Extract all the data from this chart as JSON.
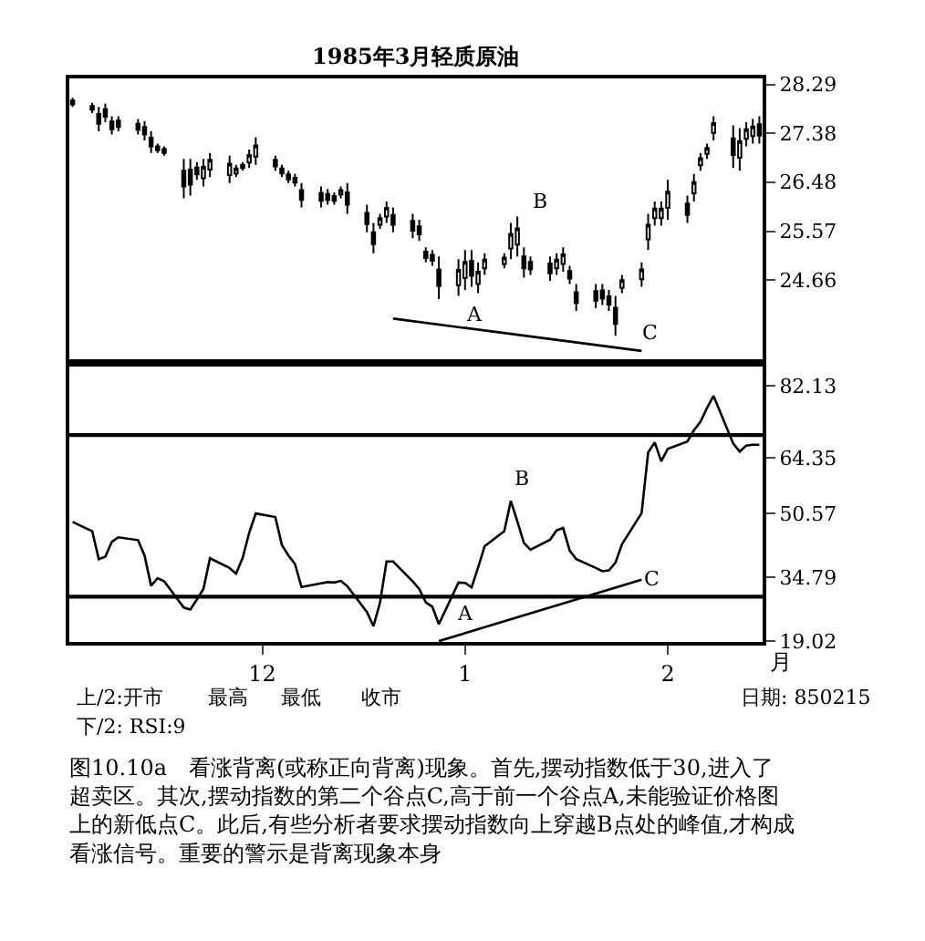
{
  "chart_data": [
    {
      "type": "candlestick",
      "title": "1985年3月轻质原油",
      "color": "#000000",
      "x": [
        "1984-11-02",
        "1984-11-05",
        "1984-11-06",
        "1984-11-07",
        "1984-11-08",
        "1984-11-09",
        "1984-11-12",
        "1984-11-13",
        "1984-11-14",
        "1984-11-15",
        "1984-11-16",
        "1984-11-19",
        "1984-11-20",
        "1984-11-21",
        "1984-11-22",
        "1984-11-23",
        "1984-11-26",
        "1984-11-27",
        "1984-11-28",
        "1984-11-29",
        "1984-11-30",
        "1984-12-03",
        "1984-12-04",
        "1984-12-05",
        "1984-12-06",
        "1984-12-07",
        "1984-12-10",
        "1984-12-11",
        "1984-12-12",
        "1984-12-13",
        "1984-12-14",
        "1984-12-17",
        "1984-12-18",
        "1984-12-19",
        "1984-12-20",
        "1984-12-21",
        "1984-12-24",
        "1984-12-25",
        "1984-12-26",
        "1984-12-27",
        "1984-12-28",
        "1984-12-31",
        "1985-01-01",
        "1985-01-02",
        "1985-01-03",
        "1985-01-04",
        "1985-01-07",
        "1985-01-08",
        "1985-01-09",
        "1985-01-10",
        "1985-01-11",
        "1985-01-14",
        "1985-01-15",
        "1985-01-16",
        "1985-01-17",
        "1985-01-18",
        "1985-01-21",
        "1985-01-22",
        "1985-01-23",
        "1985-01-24",
        "1985-01-25",
        "1985-01-28",
        "1985-01-29",
        "1985-01-30",
        "1985-01-31",
        "1985-02-01",
        "1985-02-04",
        "1985-02-05",
        "1985-02-06",
        "1985-02-07",
        "1985-02-08",
        "1985-02-11",
        "1985-02-12",
        "1985-02-13",
        "1985-02-14",
        "1985-02-15"
      ],
      "ohlc": [
        [
          27.99,
          28.04,
          27.87,
          27.92
        ],
        [
          27.89,
          27.95,
          27.76,
          27.82
        ],
        [
          27.74,
          27.87,
          27.42,
          27.56
        ],
        [
          27.83,
          27.93,
          27.59,
          27.69
        ],
        [
          27.6,
          27.7,
          27.36,
          27.46
        ],
        [
          27.62,
          27.7,
          27.42,
          27.5
        ],
        [
          27.56,
          27.65,
          27.36,
          27.45
        ],
        [
          27.5,
          27.61,
          27.25,
          27.36
        ],
        [
          27.3,
          27.42,
          27.02,
          27.14
        ],
        [
          27.14,
          27.19,
          27.02,
          27.07
        ],
        [
          27.09,
          27.14,
          26.97,
          27.02
        ],
        [
          26.69,
          26.91,
          26.18,
          26.4
        ],
        [
          26.71,
          26.91,
          26.23,
          26.43
        ],
        [
          26.75,
          26.85,
          26.52,
          26.62
        ],
        [
          26.55,
          26.91,
          26.4,
          26.76
        ],
        [
          26.71,
          27.02,
          26.57,
          26.89
        ],
        [
          26.61,
          26.97,
          26.46,
          26.82
        ],
        [
          26.64,
          26.8,
          26.57,
          26.73
        ],
        [
          26.74,
          26.85,
          26.69,
          26.8
        ],
        [
          26.84,
          27.08,
          26.74,
          26.98
        ],
        [
          26.95,
          27.31,
          26.8,
          27.16
        ],
        [
          26.89,
          26.97,
          26.69,
          26.77
        ],
        [
          26.73,
          26.8,
          26.57,
          26.64
        ],
        [
          26.62,
          26.69,
          26.46,
          26.53
        ],
        [
          26.56,
          26.63,
          26.4,
          26.47
        ],
        [
          26.33,
          26.46,
          26.01,
          26.15
        ],
        [
          26.28,
          26.4,
          26.01,
          26.13
        ],
        [
          26.26,
          26.35,
          26.06,
          26.15
        ],
        [
          26.22,
          26.29,
          26.06,
          26.13
        ],
        [
          26.25,
          26.4,
          26.18,
          26.33
        ],
        [
          26.29,
          26.46,
          25.89,
          26.06
        ],
        [
          25.91,
          26.06,
          25.55,
          25.7
        ],
        [
          25.55,
          25.72,
          25.16,
          25.33
        ],
        [
          25.69,
          25.89,
          25.61,
          25.81
        ],
        [
          25.84,
          26.12,
          25.72,
          26.0
        ],
        [
          25.87,
          26.01,
          25.55,
          25.69
        ],
        [
          25.76,
          25.89,
          25.44,
          25.58
        ],
        [
          25.66,
          25.78,
          25.39,
          25.51
        ],
        [
          25.19,
          25.27,
          24.99,
          25.07
        ],
        [
          25.13,
          25.22,
          24.93,
          25.02
        ],
        [
          24.86,
          25.1,
          24.31,
          24.55
        ],
        [
          24.57,
          25.05,
          24.37,
          24.85
        ],
        [
          24.7,
          25.22,
          24.48,
          25.0
        ],
        [
          25.02,
          25.22,
          24.54,
          24.74
        ],
        [
          24.59,
          24.99,
          24.42,
          24.82
        ],
        [
          24.88,
          25.16,
          24.76,
          25.04
        ],
        [
          24.96,
          25.16,
          24.88,
          25.08
        ],
        [
          25.25,
          25.72,
          25.05,
          25.52
        ],
        [
          25.32,
          25.84,
          25.1,
          25.62
        ],
        [
          25.1,
          25.27,
          24.71,
          24.88
        ],
        [
          25.0,
          25.1,
          24.76,
          24.86
        ],
        [
          24.97,
          25.1,
          24.65,
          24.79
        ],
        [
          24.88,
          25.16,
          24.76,
          25.04
        ],
        [
          24.96,
          25.27,
          24.82,
          25.14
        ],
        [
          24.83,
          24.93,
          24.59,
          24.69
        ],
        [
          24.44,
          24.59,
          24.09,
          24.24
        ],
        [
          24.46,
          24.59,
          24.14,
          24.28
        ],
        [
          24.47,
          24.59,
          24.2,
          24.32
        ],
        [
          24.36,
          24.48,
          24.09,
          24.21
        ],
        [
          24.15,
          24.37,
          23.63,
          23.85
        ],
        [
          24.52,
          24.76,
          24.42,
          24.66
        ],
        [
          24.68,
          24.99,
          24.54,
          24.86
        ],
        [
          25.42,
          25.89,
          25.22,
          25.69
        ],
        [
          25.81,
          26.12,
          25.67,
          25.99
        ],
        [
          25.81,
          26.12,
          25.67,
          25.99
        ],
        [
          26.0,
          26.52,
          25.78,
          26.3
        ],
        [
          26.08,
          26.23,
          25.72,
          25.87
        ],
        [
          26.27,
          26.63,
          26.12,
          26.48
        ],
        [
          26.79,
          27.02,
          26.69,
          26.92
        ],
        [
          27.0,
          27.19,
          26.91,
          27.11
        ],
        [
          27.39,
          27.7,
          27.25,
          27.57
        ],
        [
          27.29,
          27.53,
          26.74,
          26.98
        ],
        [
          26.93,
          27.48,
          26.69,
          27.24
        ],
        [
          27.28,
          27.59,
          27.14,
          27.46
        ],
        [
          27.33,
          27.65,
          27.19,
          27.51
        ],
        [
          27.55,
          27.7,
          27.19,
          27.34
        ]
      ],
      "series": [
        {
          "type": "line",
          "color": "#000000",
          "x": [
            "1984-12-21",
            "1985-01-28"
          ],
          "values": [
            23.95,
            23.35
          ]
        }
      ],
      "xlim": [
        "1984-11-01T12:00",
        "1985-02-15T12:00"
      ],
      "ylim": [
        23.2,
        28.4
      ],
      "yticks": [
        28.29,
        27.38,
        26.48,
        25.57,
        24.66
      ],
      "tick_labels": "y",
      "annotations": [
        "A",
        "B",
        "C"
      ]
    },
    {
      "type": "line",
      "xlabel": "月",
      "x": [
        "1984-11-02",
        "1984-11-05",
        "1984-11-06",
        "1984-11-07",
        "1984-11-08",
        "1984-11-09",
        "1984-11-12",
        "1984-11-13",
        "1984-11-14",
        "1984-11-15",
        "1984-11-16",
        "1984-11-19",
        "1984-11-20",
        "1984-11-21",
        "1984-11-22",
        "1984-11-23",
        "1984-11-26",
        "1984-11-27",
        "1984-11-28",
        "1984-11-29",
        "1984-11-30",
        "1984-12-03",
        "1984-12-04",
        "1984-12-05",
        "1984-12-06",
        "1984-12-07",
        "1984-12-10",
        "1984-12-11",
        "1984-12-12",
        "1984-12-13",
        "1984-12-14",
        "1984-12-17",
        "1984-12-18",
        "1984-12-19",
        "1984-12-20",
        "1984-12-21",
        "1984-12-24",
        "1984-12-25",
        "1984-12-26",
        "1984-12-27",
        "1984-12-28",
        "1984-12-31",
        "1985-01-01",
        "1985-01-02",
        "1985-01-03",
        "1985-01-04",
        "1985-01-07",
        "1985-01-08",
        "1985-01-09",
        "1985-01-10",
        "1985-01-11",
        "1985-01-14",
        "1985-01-15",
        "1985-01-16",
        "1985-01-17",
        "1985-01-18",
        "1985-01-21",
        "1985-01-22",
        "1985-01-23",
        "1985-01-24",
        "1985-01-25",
        "1985-01-28",
        "1985-01-29",
        "1985-01-30",
        "1985-01-31",
        "1985-02-01",
        "1985-02-04",
        "1985-02-05",
        "1985-02-06",
        "1985-02-07",
        "1985-02-08",
        "1985-02-11",
        "1985-02-12",
        "1985-02-13",
        "1985-02-14",
        "1985-02-15"
      ],
      "series": [
        {
          "color": "#000000",
          "values": [
            48.5,
            46.2,
            39.3,
            39.9,
            43.6,
            44.7,
            44.0,
            40.2,
            32.7,
            34.6,
            33.8,
            27.3,
            26.8,
            29.3,
            31.9,
            39.5,
            37.1,
            35.7,
            39.6,
            45.8,
            50.6,
            49.7,
            42.8,
            40.2,
            38.1,
            32.4,
            33.3,
            33.6,
            33.5,
            33.9,
            32.6,
            26.2,
            22.7,
            28.5,
            38.7,
            38.7,
            33.8,
            31.9,
            28.6,
            27.5,
            23.2,
            33.5,
            33.4,
            32.3,
            37.2,
            42.5,
            46.2,
            53.7,
            48.6,
            43.3,
            41.6,
            44.1,
            46.4,
            47.0,
            41.4,
            39.3,
            37.1,
            36.3,
            36.5,
            38.4,
            43.0,
            50.7,
            65.7,
            68.2,
            63.5,
            66.6,
            68.4,
            71.2,
            73.3,
            76.7,
            79.7,
            67.9,
            65.9,
            67.4,
            67.6,
            67.6
          ]
        },
        {
          "type": "line",
          "color": "#000000",
          "x": [
            "1984-12-28",
            "1985-01-28"
          ],
          "values": [
            19.0,
            34.2
          ]
        }
      ],
      "xlim": [
        "1984-11-01T12:00",
        "1985-02-15T12:00"
      ],
      "xticks": [
        {
          "value": "1984-12-01",
          "label": "12"
        },
        {
          "value": "1985-01-01",
          "label": "1"
        },
        {
          "value": "1985-02-01",
          "label": "2"
        }
      ],
      "ylim": [
        18.8,
        87
      ],
      "yticks": [
        82.13,
        64.35,
        50.57,
        34.79,
        19.02
      ],
      "marker": "none",
      "line_style": "solid",
      "ref_lines": [
        {
          "axis": "y",
          "value": 70,
          "color": "#000000"
        },
        {
          "axis": "y",
          "value": 30,
          "color": "#000000"
        }
      ],
      "annotations": [
        "B",
        "A",
        "C",
        "上/2:开市",
        "最高",
        "最低",
        "收市",
        "日期: 850215",
        "下/2: RSI:9",
        "图10.10a　看涨背离(或称正向背离)现象。首先,摆动指数低于30,进入了超卖区。其次,摆动指数的第二个谷点C,高于前一个谷点A,未能验证价格图上的新低点C。此后,有些分析者要求摆动指数向上穿越B点处的峰值,才构成看涨信号。重要的警示是背离现象本身"
      ]
    }
  ]
}
